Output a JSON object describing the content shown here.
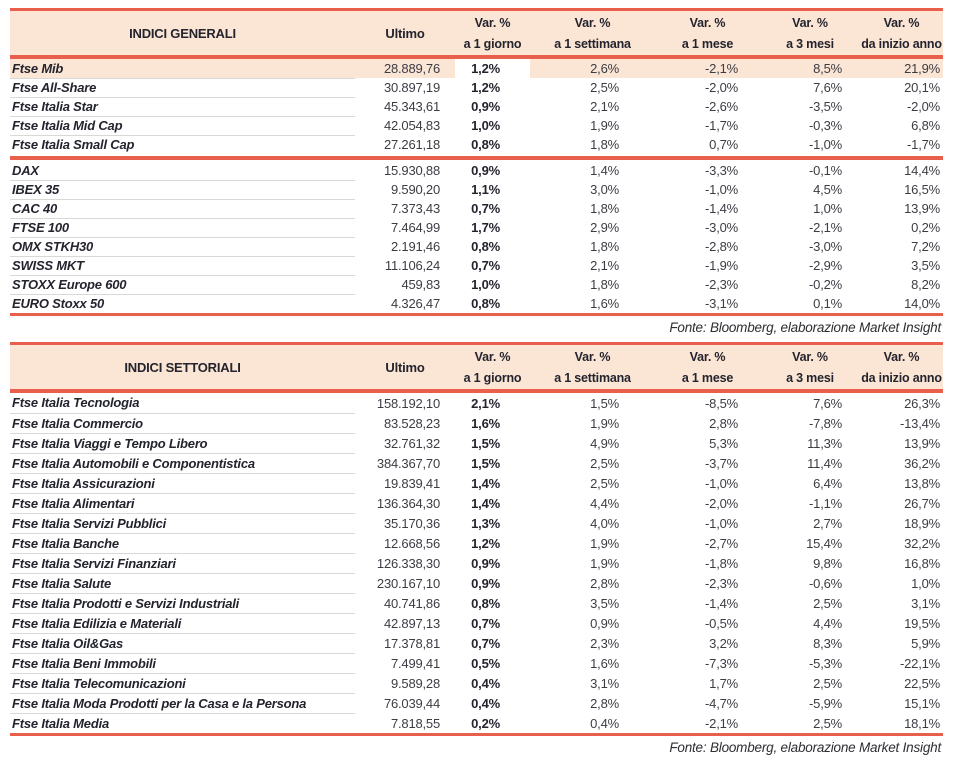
{
  "colors": {
    "accent_red": "#e8604c",
    "header_peach": "#fbe5d4",
    "row_highlight": "#fbe5d4",
    "separator_gray": "#d8d8d8",
    "text_dark": "#23242e"
  },
  "source_note": "Fonte: Bloomberg, elaborazione Market Insight",
  "var_headers": [
    {
      "line1": "Var. %",
      "line2": "a 1 giorno"
    },
    {
      "line1": "Var. %",
      "line2": "a 1 settimana"
    },
    {
      "line1": "Var. %",
      "line2": "a 1 mese"
    },
    {
      "line1": "Var. %",
      "line2": "a 3 mesi"
    },
    {
      "line1": "Var. %",
      "line2": "da inizio anno"
    }
  ],
  "tables": [
    {
      "title": "INDICI GENERALI",
      "ultimo_label": "Ultimo",
      "groups": [
        [
          {
            "name": "Ftse Mib",
            "ultimo": "28.889,76",
            "d1": "1,2%",
            "w1": "2,6%",
            "m1": "-2,1%",
            "m3": "8,5%",
            "ytd": "21,9%",
            "highlight": true
          },
          {
            "name": "Ftse All-Share",
            "ultimo": "30.897,19",
            "d1": "1,2%",
            "w1": "2,5%",
            "m1": "-2,0%",
            "m3": "7,6%",
            "ytd": "20,1%"
          },
          {
            "name": "Ftse Italia Star",
            "ultimo": "45.343,61",
            "d1": "0,9%",
            "w1": "2,1%",
            "m1": "-2,6%",
            "m3": "-3,5%",
            "ytd": "-2,0%"
          },
          {
            "name": "Ftse Italia Mid Cap",
            "ultimo": "42.054,83",
            "d1": "1,0%",
            "w1": "1,9%",
            "m1": "-1,7%",
            "m3": "-0,3%",
            "ytd": "6,8%"
          },
          {
            "name": "Ftse Italia Small Cap",
            "ultimo": "27.261,18",
            "d1": "0,8%",
            "w1": "1,8%",
            "m1": "0,7%",
            "m3": "-1,0%",
            "ytd": "-1,7%"
          }
        ],
        [
          {
            "name": "DAX",
            "ultimo": "15.930,88",
            "d1": "0,9%",
            "w1": "1,4%",
            "m1": "-3,3%",
            "m3": "-0,1%",
            "ytd": "14,4%"
          },
          {
            "name": "IBEX 35",
            "ultimo": "9.590,20",
            "d1": "1,1%",
            "w1": "3,0%",
            "m1": "-1,0%",
            "m3": "4,5%",
            "ytd": "16,5%"
          },
          {
            "name": "CAC 40",
            "ultimo": "7.373,43",
            "d1": "0,7%",
            "w1": "1,8%",
            "m1": "-1,4%",
            "m3": "1,0%",
            "ytd": "13,9%"
          },
          {
            "name": "FTSE 100",
            "ultimo": "7.464,99",
            "d1": "1,7%",
            "w1": "2,9%",
            "m1": "-3,0%",
            "m3": "-2,1%",
            "ytd": "0,2%"
          },
          {
            "name": "OMX STKH30",
            "ultimo": "2.191,46",
            "d1": "0,8%",
            "w1": "1,8%",
            "m1": "-2,8%",
            "m3": "-3,0%",
            "ytd": "7,2%"
          },
          {
            "name": "SWISS MKT",
            "ultimo": "11.106,24",
            "d1": "0,7%",
            "w1": "2,1%",
            "m1": "-1,9%",
            "m3": "-2,9%",
            "ytd": "3,5%"
          },
          {
            "name": "STOXX Europe 600",
            "ultimo": "459,83",
            "d1": "1,0%",
            "w1": "1,8%",
            "m1": "-2,3%",
            "m3": "-0,2%",
            "ytd": "8,2%"
          },
          {
            "name": "EURO Stoxx 50",
            "ultimo": "4.326,47",
            "d1": "0,8%",
            "w1": "1,6%",
            "m1": "-3,1%",
            "m3": "0,1%",
            "ytd": "14,0%"
          }
        ]
      ]
    },
    {
      "title": "INDICI SETTORIALI",
      "ultimo_label": "Ultimo",
      "groups": [
        [
          {
            "name": "Ftse Italia Tecnologia",
            "ultimo": "158.192,10",
            "d1": "2,1%",
            "w1": "1,5%",
            "m1": "-8,5%",
            "m3": "7,6%",
            "ytd": "26,3%"
          },
          {
            "name": "Ftse Italia Commercio",
            "ultimo": "83.528,23",
            "d1": "1,6%",
            "w1": "1,9%",
            "m1": "2,8%",
            "m3": "-7,8%",
            "ytd": "-13,4%"
          },
          {
            "name": "Ftse Italia Viaggi e Tempo Libero",
            "ultimo": "32.761,32",
            "d1": "1,5%",
            "w1": "4,9%",
            "m1": "5,3%",
            "m3": "11,3%",
            "ytd": "13,9%"
          },
          {
            "name": "Ftse Italia Automobili e Componentistica",
            "ultimo": "384.367,70",
            "d1": "1,5%",
            "w1": "2,5%",
            "m1": "-3,7%",
            "m3": "11,4%",
            "ytd": "36,2%"
          },
          {
            "name": "Ftse Italia Assicurazioni",
            "ultimo": "19.839,41",
            "d1": "1,4%",
            "w1": "2,5%",
            "m1": "-1,0%",
            "m3": "6,4%",
            "ytd": "13,8%"
          },
          {
            "name": "Ftse Italia Alimentari",
            "ultimo": "136.364,30",
            "d1": "1,4%",
            "w1": "4,4%",
            "m1": "-2,0%",
            "m3": "-1,1%",
            "ytd": "26,7%"
          },
          {
            "name": "Ftse Italia Servizi Pubblici",
            "ultimo": "35.170,36",
            "d1": "1,3%",
            "w1": "4,0%",
            "m1": "-1,0%",
            "m3": "2,7%",
            "ytd": "18,9%"
          },
          {
            "name": "Ftse Italia Banche",
            "ultimo": "12.668,56",
            "d1": "1,2%",
            "w1": "1,9%",
            "m1": "-2,7%",
            "m3": "15,4%",
            "ytd": "32,2%"
          },
          {
            "name": "Ftse Italia Servizi Finanziari",
            "ultimo": "126.338,30",
            "d1": "0,9%",
            "w1": "1,9%",
            "m1": "-1,8%",
            "m3": "9,8%",
            "ytd": "16,8%"
          },
          {
            "name": "Ftse Italia Salute",
            "ultimo": "230.167,10",
            "d1": "0,9%",
            "w1": "2,8%",
            "m1": "-2,3%",
            "m3": "-0,6%",
            "ytd": "1,0%"
          },
          {
            "name": "Ftse Italia Prodotti e Servizi Industriali",
            "ultimo": "40.741,86",
            "d1": "0,8%",
            "w1": "3,5%",
            "m1": "-1,4%",
            "m3": "2,5%",
            "ytd": "3,1%"
          },
          {
            "name": "Ftse Italia Edilizia e Materiali",
            "ultimo": "42.897,13",
            "d1": "0,7%",
            "w1": "0,9%",
            "m1": "-0,5%",
            "m3": "4,4%",
            "ytd": "19,5%"
          },
          {
            "name": "Ftse Italia Oil&Gas",
            "ultimo": "17.378,81",
            "d1": "0,7%",
            "w1": "2,3%",
            "m1": "3,2%",
            "m3": "8,3%",
            "ytd": "5,9%"
          },
          {
            "name": "Ftse Italia Beni Immobili",
            "ultimo": "7.499,41",
            "d1": "0,5%",
            "w1": "1,6%",
            "m1": "-7,3%",
            "m3": "-5,3%",
            "ytd": "-22,1%"
          },
          {
            "name": "Ftse Italia Telecomunicazioni",
            "ultimo": "9.589,28",
            "d1": "0,4%",
            "w1": "3,1%",
            "m1": "1,7%",
            "m3": "2,5%",
            "ytd": "22,5%"
          },
          {
            "name": "Ftse Italia Moda Prodotti per la Casa e la Persona",
            "ultimo": "76.039,44",
            "d1": "0,4%",
            "w1": "2,8%",
            "m1": "-4,7%",
            "m3": "-5,9%",
            "ytd": "15,1%"
          },
          {
            "name": "Ftse Italia Media",
            "ultimo": "7.818,55",
            "d1": "0,2%",
            "w1": "0,4%",
            "m1": "-2,1%",
            "m3": "2,5%",
            "ytd": "18,1%"
          }
        ]
      ]
    }
  ]
}
